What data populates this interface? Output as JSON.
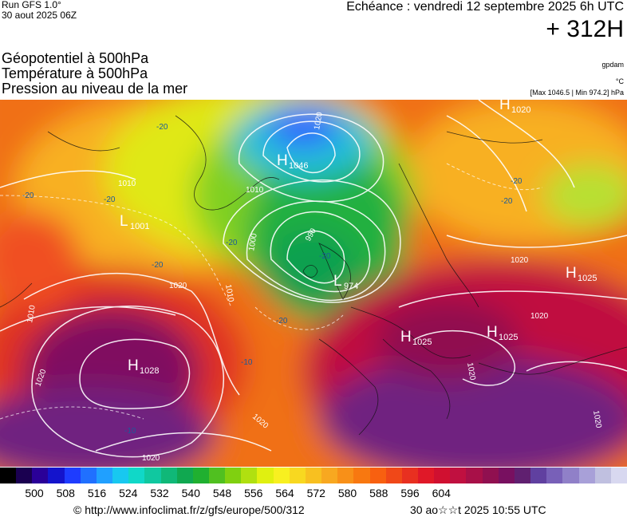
{
  "header": {
    "run": "Run GFS 1.0°",
    "run_date": "30 aout 2025 06Z",
    "valid": "Echéance : vendredi 12 septembre 2025 6h UTC",
    "lead": "+ 312H"
  },
  "params": {
    "p1": "Géopotentiel à 500hPa",
    "p2": "Température à 500hPa",
    "p3": "Pression au niveau de la mer"
  },
  "units": {
    "u1": "gpdam",
    "u2": "°C",
    "u3": "[Max 1046.5 | Min 974.2] hPa"
  },
  "map": {
    "highs": [
      {
        "label": "H",
        "value": "1046"
      },
      {
        "label": "H",
        "value": "1028"
      },
      {
        "label": "H",
        "value": "1025"
      },
      {
        "label": "H",
        "value": "1025"
      },
      {
        "label": "H",
        "value": "1025"
      },
      {
        "label": "H",
        "value": "1020"
      }
    ],
    "lows": [
      {
        "label": "L",
        "value": "1001"
      },
      {
        "label": "L",
        "value": "974"
      }
    ],
    "isobar_labels": [
      "1010",
      "1010",
      "1010",
      "1020",
      "1020",
      "1020",
      "1020",
      "1020",
      "1020",
      "1000",
      "990",
      "1010",
      "1020",
      "1020",
      "1020"
    ],
    "temp_labels": [
      "-20",
      "-20",
      "-20",
      "-20",
      "-20",
      "-20",
      "-20",
      "-20",
      "-20",
      "-10",
      "-10"
    ]
  },
  "colorbar": {
    "colors": [
      "#000000",
      "#1a0050",
      "#2a0098",
      "#1414cc",
      "#1e3cff",
      "#2070ff",
      "#20a0ff",
      "#18c8f0",
      "#10d8c8",
      "#10c8a0",
      "#10b878",
      "#10a850",
      "#20b030",
      "#50c020",
      "#80d010",
      "#b0e010",
      "#e0f010",
      "#f8f020",
      "#f8d820",
      "#f8c020",
      "#f8a820",
      "#f89018",
      "#f87810",
      "#f86010",
      "#f04818",
      "#e83020",
      "#e01828",
      "#d01030",
      "#c01040",
      "#a81048",
      "#901050",
      "#781060",
      "#602070",
      "#6040a0",
      "#7860b8",
      "#9080c8",
      "#a8a0d8",
      "#c0c0e0",
      "#d8d8f0"
    ],
    "ticks": [
      "500",
      "508",
      "516",
      "524",
      "532",
      "540",
      "548",
      "556",
      "564",
      "572",
      "580",
      "588",
      "596",
      "604"
    ]
  },
  "footer": {
    "url": "© http://www.infoclimat.fr/z/gfs/europe/500/312",
    "date": "30 ao☆☆t 2025 10:55 UTC"
  }
}
